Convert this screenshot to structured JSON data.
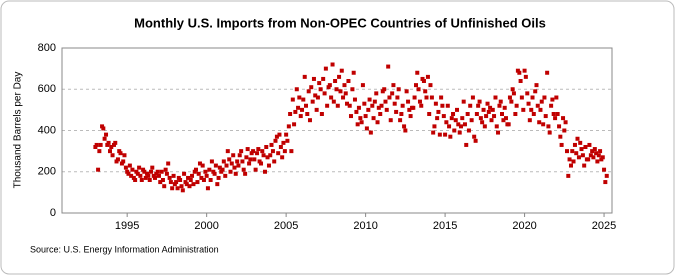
{
  "chart_data": {
    "type": "scatter",
    "title": "Monthly U.S. Imports from Non-OPEC Countries of Unfinished Oils",
    "y_label": "Thousand Barrels per Day",
    "source": "Source: U.S. Energy Information Administration",
    "color": "#c00000",
    "grid": true,
    "xlim": [
      1990.9,
      2025.5
    ],
    "xticks": [
      1995,
      2000,
      2005,
      2010,
      2015,
      2020,
      2025
    ],
    "ylim": [
      0,
      800
    ],
    "yticks": [
      0,
      200,
      400,
      600,
      800
    ],
    "x": [
      1993,
      1993.08,
      1993.17,
      1993.25,
      1993.33,
      1993.42,
      1993.5,
      1993.58,
      1993.67,
      1993.75,
      1993.83,
      1993.92,
      1994,
      1994.08,
      1994.17,
      1994.25,
      1994.33,
      1994.42,
      1994.5,
      1994.58,
      1994.67,
      1994.75,
      1994.83,
      1994.92,
      1995,
      1995.08,
      1995.17,
      1995.25,
      1995.33,
      1995.42,
      1995.5,
      1995.58,
      1995.67,
      1995.75,
      1995.83,
      1995.92,
      1996,
      1996.08,
      1996.17,
      1996.25,
      1996.33,
      1996.42,
      1996.5,
      1996.58,
      1996.67,
      1996.75,
      1996.83,
      1996.92,
      1997,
      1997.08,
      1997.17,
      1997.25,
      1997.33,
      1997.42,
      1997.5,
      1997.58,
      1997.67,
      1997.75,
      1997.83,
      1997.92,
      1998,
      1998.08,
      1998.17,
      1998.25,
      1998.33,
      1998.42,
      1998.5,
      1998.58,
      1998.67,
      1998.75,
      1998.83,
      1998.92,
      1999,
      1999.08,
      1999.17,
      1999.25,
      1999.33,
      1999.42,
      1999.5,
      1999.58,
      1999.67,
      1999.75,
      1999.83,
      1999.92,
      2000,
      2000.08,
      2000.17,
      2000.25,
      2000.33,
      2000.42,
      2000.5,
      2000.58,
      2000.67,
      2000.75,
      2000.83,
      2000.92,
      2001,
      2001.08,
      2001.17,
      2001.25,
      2001.33,
      2001.42,
      2001.5,
      2001.58,
      2001.67,
      2001.75,
      2001.83,
      2001.92,
      2002,
      2002.08,
      2002.17,
      2002.25,
      2002.33,
      2002.42,
      2002.5,
      2002.58,
      2002.67,
      2002.75,
      2002.83,
      2002.92,
      2003,
      2003.08,
      2003.17,
      2003.25,
      2003.33,
      2003.42,
      2003.5,
      2003.58,
      2003.67,
      2003.75,
      2003.83,
      2003.92,
      2004,
      2004.08,
      2004.17,
      2004.25,
      2004.33,
      2004.42,
      2004.5,
      2004.58,
      2004.67,
      2004.75,
      2004.83,
      2004.92,
      2005,
      2005.08,
      2005.17,
      2005.25,
      2005.33,
      2005.42,
      2005.5,
      2005.58,
      2005.67,
      2005.75,
      2005.83,
      2005.92,
      2006,
      2006.08,
      2006.17,
      2006.25,
      2006.33,
      2006.42,
      2006.5,
      2006.58,
      2006.67,
      2006.75,
      2006.83,
      2006.92,
      2007,
      2007.08,
      2007.17,
      2007.25,
      2007.33,
      2007.42,
      2007.5,
      2007.58,
      2007.67,
      2007.75,
      2007.83,
      2007.92,
      2008,
      2008.08,
      2008.17,
      2008.25,
      2008.33,
      2008.42,
      2008.5,
      2008.58,
      2008.67,
      2008.75,
      2008.83,
      2008.92,
      2009,
      2009.08,
      2009.17,
      2009.25,
      2009.33,
      2009.42,
      2009.5,
      2009.58,
      2009.67,
      2009.75,
      2009.83,
      2009.92,
      2010,
      2010.08,
      2010.17,
      2010.25,
      2010.33,
      2010.42,
      2010.5,
      2010.58,
      2010.67,
      2010.75,
      2010.83,
      2010.92,
      2011,
      2011.08,
      2011.17,
      2011.25,
      2011.33,
      2011.42,
      2011.5,
      2011.58,
      2011.67,
      2011.75,
      2011.83,
      2011.92,
      2012,
      2012.08,
      2012.17,
      2012.25,
      2012.33,
      2012.42,
      2012.5,
      2012.58,
      2012.67,
      2012.75,
      2012.83,
      2012.92,
      2013,
      2013.08,
      2013.17,
      2013.25,
      2013.33,
      2013.42,
      2013.5,
      2013.58,
      2013.67,
      2013.75,
      2013.83,
      2013.92,
      2014,
      2014.08,
      2014.17,
      2014.25,
      2014.33,
      2014.42,
      2014.5,
      2014.58,
      2014.67,
      2014.75,
      2014.83,
      2014.92,
      2015,
      2015.08,
      2015.17,
      2015.25,
      2015.33,
      2015.42,
      2015.5,
      2015.58,
      2015.67,
      2015.75,
      2015.83,
      2015.92,
      2016,
      2016.08,
      2016.17,
      2016.25,
      2016.33,
      2016.42,
      2016.5,
      2016.58,
      2016.67,
      2016.75,
      2016.83,
      2016.92,
      2017,
      2017.08,
      2017.17,
      2017.25,
      2017.33,
      2017.42,
      2017.5,
      2017.58,
      2017.67,
      2017.75,
      2017.83,
      2017.92,
      2018,
      2018.08,
      2018.17,
      2018.25,
      2018.33,
      2018.42,
      2018.5,
      2018.58,
      2018.67,
      2018.75,
      2018.83,
      2018.92,
      2019,
      2019.08,
      2019.17,
      2019.25,
      2019.33,
      2019.42,
      2019.5,
      2019.58,
      2019.67,
      2019.75,
      2019.83,
      2019.92,
      2020,
      2020.08,
      2020.17,
      2020.25,
      2020.33,
      2020.42,
      2020.5,
      2020.58,
      2020.67,
      2020.75,
      2020.83,
      2020.92,
      2021,
      2021.08,
      2021.17,
      2021.25,
      2021.33,
      2021.42,
      2021.5,
      2021.58,
      2021.67,
      2021.75,
      2021.83,
      2021.92,
      2022,
      2022.08,
      2022.17,
      2022.25,
      2022.33,
      2022.42,
      2022.5,
      2022.58,
      2022.67,
      2022.75,
      2022.83,
      2022.92,
      2023,
      2023.08,
      2023.17,
      2023.25,
      2023.33,
      2023.42,
      2023.5,
      2023.58,
      2023.67,
      2023.75,
      2023.83,
      2023.92,
      2024,
      2024.08,
      2024.17,
      2024.25,
      2024.33,
      2024.42,
      2024.5,
      2024.58,
      2024.67,
      2024.75,
      2024.83,
      2024.92,
      2025,
      2025.08,
      2025.17
    ],
    "values": [
      320,
      330,
      210,
      300,
      330,
      420,
      410,
      360,
      380,
      330,
      340,
      300,
      320,
      280,
      330,
      340,
      250,
      260,
      300,
      290,
      240,
      250,
      280,
      220,
      200,
      190,
      230,
      180,
      210,
      170,
      160,
      200,
      190,
      220,
      180,
      160,
      210,
      200,
      170,
      190,
      180,
      160,
      200,
      220,
      180,
      170,
      190,
      200,
      180,
      150,
      200,
      160,
      130,
      210,
      190,
      240,
      170,
      150,
      120,
      180,
      140,
      150,
      120,
      170,
      160,
      130,
      110,
      190,
      150,
      140,
      170,
      130,
      160,
      180,
      140,
      200,
      210,
      150,
      190,
      240,
      170,
      230,
      160,
      200,
      180,
      120,
      210,
      160,
      250,
      200,
      190,
      230,
      140,
      170,
      220,
      200,
      210,
      250,
      180,
      230,
      300,
      260,
      200,
      240,
      280,
      220,
      190,
      250,
      230,
      280,
      300,
      250,
      210,
      190,
      270,
      310,
      240,
      260,
      290,
      300,
      260,
      210,
      290,
      310,
      250,
      240,
      300,
      280,
      200,
      320,
      270,
      230,
      280,
      330,
      300,
      250,
      350,
      370,
      290,
      380,
      320,
      270,
      340,
      300,
      380,
      350,
      420,
      480,
      300,
      550,
      430,
      490,
      600,
      510,
      560,
      470,
      500,
      550,
      660,
      520,
      480,
      590,
      450,
      610,
      540,
      650,
      570,
      500,
      560,
      630,
      600,
      480,
      650,
      580,
      700,
      520,
      610,
      620,
      560,
      720,
      540,
      640,
      600,
      520,
      660,
      590,
      690,
      560,
      620,
      580,
      530,
      640,
      520,
      470,
      600,
      680,
      550,
      490,
      430,
      510,
      460,
      440,
      620,
      530,
      470,
      410,
      500,
      550,
      390,
      520,
      460,
      540,
      580,
      440,
      510,
      480,
      520,
      590,
      600,
      540,
      500,
      710,
      560,
      450,
      580,
      620,
      530,
      490,
      560,
      600,
      450,
      480,
      520,
      420,
      400,
      590,
      540,
      500,
      470,
      510,
      510,
      560,
      620,
      680,
      600,
      540,
      520,
      650,
      640,
      590,
      560,
      660,
      480,
      620,
      560,
      390,
      420,
      530,
      460,
      490,
      380,
      560,
      520,
      470,
      380,
      440,
      520,
      420,
      370,
      460,
      480,
      400,
      450,
      500,
      430,
      390,
      420,
      460,
      540,
      430,
      330,
      480,
      400,
      520,
      450,
      560,
      370,
      350,
      480,
      520,
      540,
      460,
      440,
      500,
      420,
      470,
      530,
      490,
      510,
      450,
      500,
      470,
      560,
      420,
      390,
      520,
      540,
      480,
      450,
      510,
      460,
      430,
      430,
      560,
      540,
      600,
      580,
      480,
      520,
      690,
      680,
      640,
      560,
      500,
      690,
      660,
      580,
      530,
      450,
      500,
      560,
      480,
      590,
      620,
      520,
      440,
      500,
      540,
      430,
      560,
      470,
      680,
      420,
      390,
      520,
      550,
      480,
      460,
      560,
      480,
      420,
      370,
      330,
      460,
      400,
      440,
      300,
      180,
      260,
      230,
      300,
      250,
      330,
      290,
      360,
      270,
      340,
      310,
      280,
      230,
      320,
      260,
      260,
      330,
      280,
      300,
      270,
      310,
      290,
      250,
      280,
      300,
      260,
      270,
      210,
      150,
      180
    ]
  }
}
